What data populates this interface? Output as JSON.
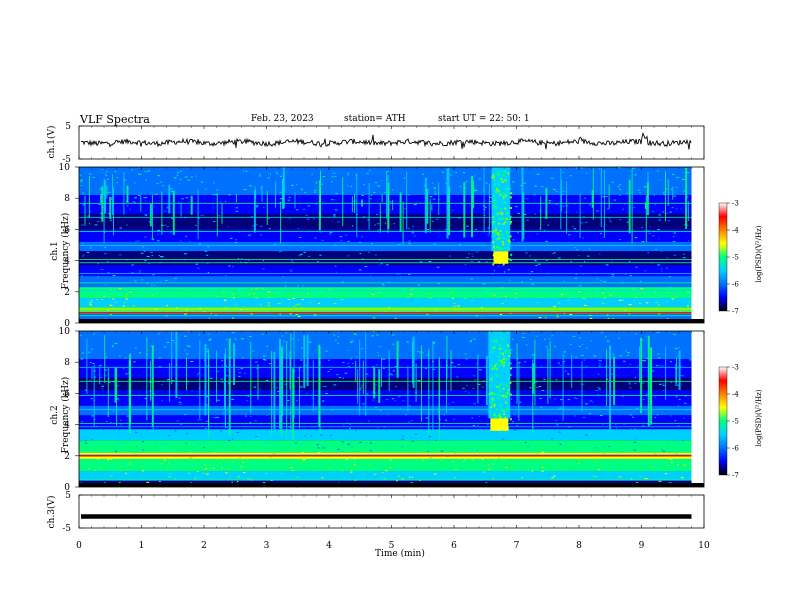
{
  "header": {
    "title": "VLF  Spectra",
    "date": "Feb. 23, 2023",
    "station": "station= ATH",
    "start": "start  UT  =    22: 50: 1"
  },
  "chart_data": [
    {
      "type": "line",
      "name": "ch1-waveform",
      "ylabel": "ch.1(V)",
      "ylim": [
        -5,
        5
      ],
      "yticks": [
        "5",
        "-5"
      ],
      "baseline": 0,
      "xlim": [
        0,
        10
      ],
      "x_end": 9.8
    },
    {
      "type": "heatmap",
      "name": "ch1-spectrogram",
      "ylabel": "ch.1\nFrequency  (kHz)",
      "ylim": [
        0,
        10
      ],
      "yticks": [
        "0",
        "2",
        "4",
        "6",
        "8",
        "10"
      ],
      "xlim": [
        0,
        10
      ],
      "x_end": 9.8,
      "colorbar": {
        "label": "log(PSD)(V²/Hz)",
        "range": [
          -7,
          -3
        ],
        "ticks": [
          "-3",
          "-4",
          "-5",
          "-6",
          "-7"
        ]
      },
      "burst": {
        "x_start": 6.6,
        "x_end": 6.9,
        "f_low": 3.8,
        "f_high": 10
      }
    },
    {
      "type": "heatmap",
      "name": "ch2-spectrogram",
      "ylabel": "ch.2\nFrequency  (kHz)",
      "ylim": [
        0,
        10
      ],
      "yticks": [
        "0",
        "2",
        "4",
        "6",
        "8",
        "10"
      ],
      "xlim": [
        0,
        10
      ],
      "x_end": 9.8,
      "colorbar": {
        "label": "log(PSD)(V²/Hz)",
        "range": [
          -7,
          -3
        ],
        "ticks": [
          "-3",
          "-4",
          "-5",
          "-6",
          "-7"
        ]
      },
      "burst": {
        "x_start": 6.55,
        "x_end": 6.9,
        "f_low": 3.6,
        "f_high": 10
      }
    },
    {
      "type": "line",
      "name": "ch3-waveform",
      "ylabel": "ch.3(V)",
      "ylim": [
        -5,
        5
      ],
      "yticks": [
        "5",
        "-5"
      ],
      "baseline": -1.5,
      "xlim": [
        0,
        10
      ],
      "x_end": 9.8,
      "xlabel": "Time  (min)",
      "xticks": [
        "0",
        "1",
        "2",
        "3",
        "4",
        "5",
        "6",
        "7",
        "8",
        "9",
        "10"
      ]
    }
  ],
  "colors": {
    "spectrum": [
      "#00007a",
      "#0000ff",
      "#0070ff",
      "#00d0ff",
      "#00ff80",
      "#80ff00",
      "#ffff00",
      "#ff8000",
      "#ff0000",
      "#ffffff"
    ]
  }
}
